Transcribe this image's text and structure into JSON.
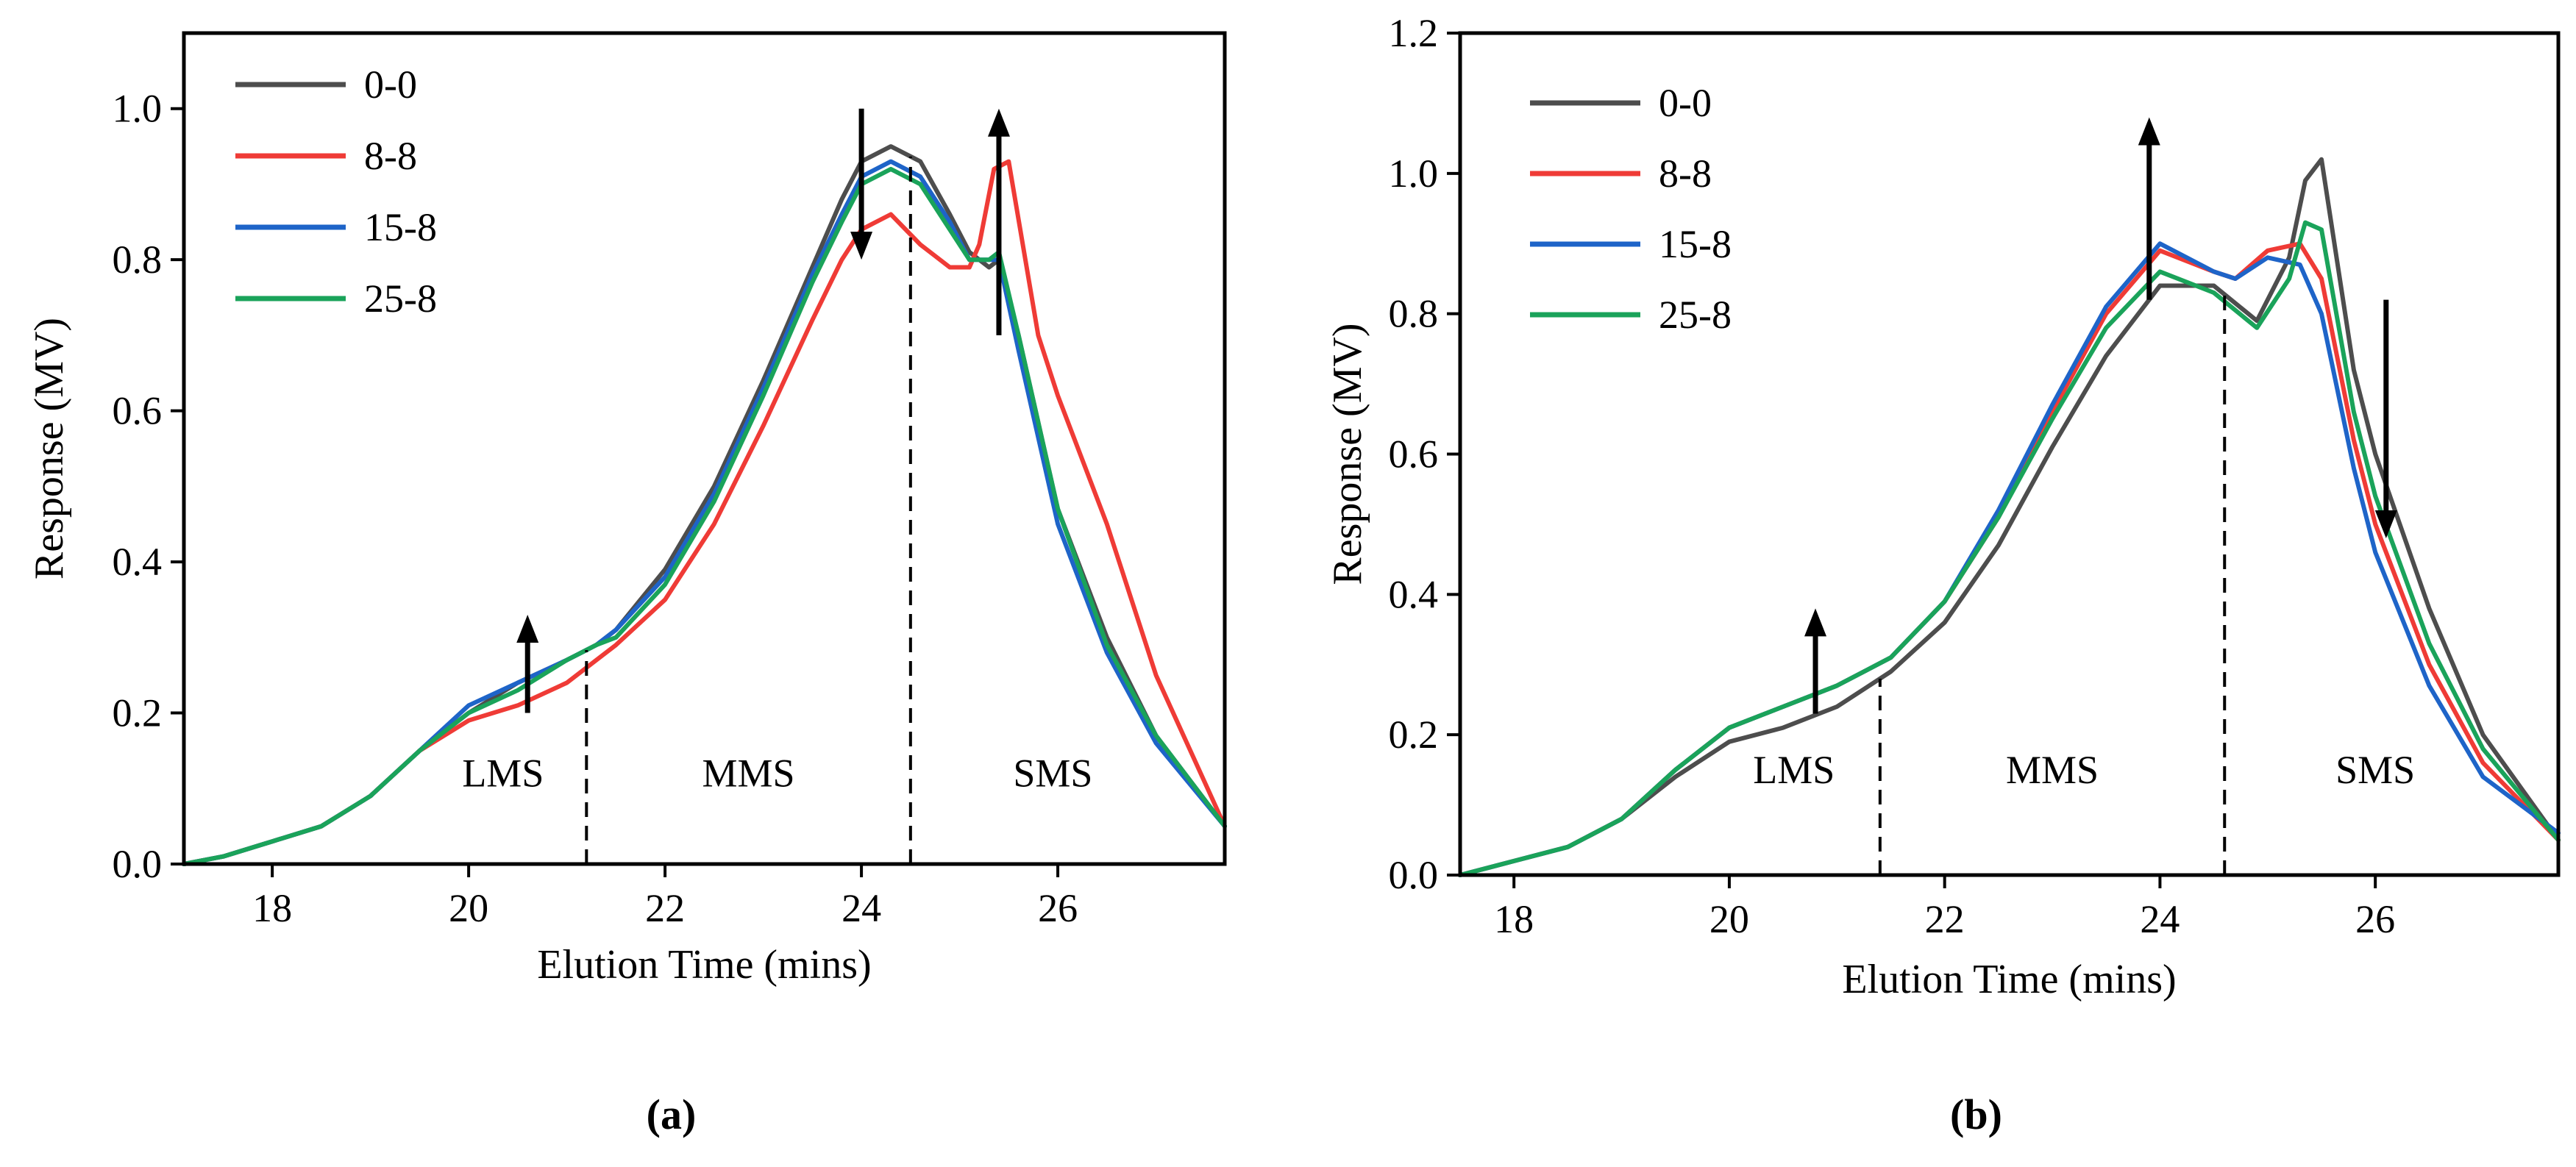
{
  "chart_data": [
    {
      "type": "line",
      "panel_label": "(a)",
      "xlabel": "Elution Time (mins)",
      "ylabel": "Response (MV)",
      "xlim": [
        17.1,
        27.7
      ],
      "ylim": [
        0,
        1.1
      ],
      "x_ticks": [
        18,
        20,
        22,
        24,
        26
      ],
      "x_tick_labels": [
        "18",
        "20",
        "22",
        "24",
        "26"
      ],
      "y_ticks": [
        0,
        0.2,
        0.4,
        0.6,
        0.8,
        1.0
      ],
      "y_tick_labels": [
        "0.0",
        "0.2",
        "0.4",
        "0.6",
        "0.8",
        "1.0"
      ],
      "legend_placement": "top-left",
      "series": [
        {
          "name": "0-0",
          "color": "#4d4d4d",
          "x": [
            17.1,
            17.5,
            18.0,
            18.5,
            19.0,
            19.5,
            20.0,
            20.5,
            21.0,
            21.3,
            21.5,
            22.0,
            22.5,
            23.0,
            23.5,
            23.8,
            24.0,
            24.3,
            24.6,
            24.9,
            25.1,
            25.3,
            25.4,
            25.6,
            26.0,
            26.5,
            27.0,
            27.7
          ],
          "y": [
            0.0,
            0.01,
            0.03,
            0.05,
            0.09,
            0.15,
            0.2,
            0.24,
            0.27,
            0.29,
            0.31,
            0.39,
            0.5,
            0.64,
            0.79,
            0.88,
            0.93,
            0.95,
            0.93,
            0.86,
            0.81,
            0.79,
            0.8,
            0.7,
            0.47,
            0.3,
            0.17,
            0.05
          ]
        },
        {
          "name": "8-8",
          "color": "#ef3b36",
          "x": [
            17.1,
            17.5,
            18.0,
            18.5,
            19.0,
            19.5,
            20.0,
            20.5,
            21.0,
            21.3,
            21.5,
            22.0,
            22.5,
            23.0,
            23.5,
            23.8,
            24.0,
            24.3,
            24.6,
            24.9,
            25.1,
            25.2,
            25.35,
            25.5,
            25.8,
            26.0,
            26.5,
            27.0,
            27.7
          ],
          "y": [
            0.0,
            0.01,
            0.03,
            0.05,
            0.09,
            0.15,
            0.19,
            0.21,
            0.24,
            0.27,
            0.29,
            0.35,
            0.45,
            0.58,
            0.72,
            0.8,
            0.84,
            0.86,
            0.82,
            0.79,
            0.79,
            0.82,
            0.92,
            0.93,
            0.7,
            0.62,
            0.45,
            0.25,
            0.05
          ]
        },
        {
          "name": "15-8",
          "color": "#1e64c8",
          "x": [
            17.1,
            17.5,
            18.0,
            18.5,
            19.0,
            19.5,
            20.0,
            20.5,
            21.0,
            21.3,
            21.5,
            22.0,
            22.5,
            23.0,
            23.5,
            23.8,
            24.0,
            24.3,
            24.6,
            24.9,
            25.1,
            25.3,
            25.4,
            25.6,
            26.0,
            26.5,
            27.0,
            27.7
          ],
          "y": [
            0.0,
            0.01,
            0.03,
            0.05,
            0.09,
            0.15,
            0.21,
            0.24,
            0.27,
            0.29,
            0.31,
            0.38,
            0.49,
            0.63,
            0.78,
            0.86,
            0.91,
            0.93,
            0.91,
            0.85,
            0.8,
            0.8,
            0.8,
            0.68,
            0.45,
            0.28,
            0.16,
            0.05
          ]
        },
        {
          "name": "25-8",
          "color": "#1aa35a",
          "x": [
            17.1,
            17.5,
            18.0,
            18.5,
            19.0,
            19.5,
            20.0,
            20.5,
            21.0,
            21.3,
            21.5,
            22.0,
            22.5,
            23.0,
            23.5,
            23.8,
            24.0,
            24.3,
            24.6,
            24.9,
            25.1,
            25.3,
            25.4,
            25.6,
            26.0,
            26.5,
            27.0,
            27.7
          ],
          "y": [
            0.0,
            0.01,
            0.03,
            0.05,
            0.09,
            0.15,
            0.2,
            0.23,
            0.27,
            0.29,
            0.3,
            0.37,
            0.48,
            0.62,
            0.77,
            0.85,
            0.9,
            0.92,
            0.9,
            0.84,
            0.8,
            0.8,
            0.81,
            0.7,
            0.47,
            0.29,
            0.17,
            0.05
          ]
        }
      ],
      "boundaries": [
        21.2,
        24.5
      ],
      "region_labels": [
        {
          "text": "LMS",
          "x": 20.35,
          "y": 0.12
        },
        {
          "text": "MMS",
          "x": 22.85,
          "y": 0.12
        },
        {
          "text": "SMS",
          "x": 25.95,
          "y": 0.12
        }
      ],
      "arrows": [
        {
          "x": 20.6,
          "from": 0.2,
          "to": 0.33
        },
        {
          "x": 24.0,
          "from": 1.0,
          "to": 0.8
        },
        {
          "x": 25.4,
          "from": 0.7,
          "to": 1.0
        }
      ]
    },
    {
      "type": "line",
      "panel_label": "(b)",
      "xlabel": "Elution Time (mins)",
      "ylabel": "Response (MV)",
      "xlim": [
        17.5,
        27.7
      ],
      "ylim": [
        0,
        1.2
      ],
      "x_ticks": [
        18,
        20,
        22,
        24,
        26
      ],
      "x_tick_labels": [
        "18",
        "20",
        "22",
        "24",
        "26"
      ],
      "y_ticks": [
        0,
        0.2,
        0.4,
        0.6,
        0.8,
        1.0,
        1.2
      ],
      "y_tick_labels": [
        "0.0",
        "0.2",
        "0.4",
        "0.6",
        "0.8",
        "1.0",
        "1.2"
      ],
      "legend_placement": "top-left",
      "series": [
        {
          "name": "0-0",
          "color": "#4d4d4d",
          "x": [
            17.5,
            18.0,
            18.5,
            19.0,
            19.5,
            20.0,
            20.5,
            21.0,
            21.5,
            22.0,
            22.5,
            23.0,
            23.5,
            24.0,
            24.5,
            24.9,
            25.2,
            25.35,
            25.5,
            25.8,
            26.0,
            26.5,
            27.0,
            27.7
          ],
          "y": [
            0.0,
            0.02,
            0.04,
            0.08,
            0.14,
            0.19,
            0.21,
            0.24,
            0.29,
            0.36,
            0.47,
            0.61,
            0.74,
            0.84,
            0.84,
            0.79,
            0.88,
            0.99,
            1.02,
            0.72,
            0.6,
            0.38,
            0.2,
            0.05
          ]
        },
        {
          "name": "8-8",
          "color": "#ef3b36",
          "x": [
            17.5,
            18.0,
            18.5,
            19.0,
            19.5,
            20.0,
            20.5,
            21.0,
            21.5,
            22.0,
            22.5,
            23.0,
            23.5,
            24.0,
            24.5,
            24.7,
            25.0,
            25.3,
            25.5,
            25.8,
            26.0,
            26.5,
            27.0,
            27.7
          ],
          "y": [
            0.0,
            0.02,
            0.04,
            0.08,
            0.15,
            0.21,
            0.24,
            0.27,
            0.31,
            0.39,
            0.51,
            0.66,
            0.8,
            0.89,
            0.86,
            0.85,
            0.89,
            0.9,
            0.85,
            0.62,
            0.5,
            0.3,
            0.16,
            0.05
          ]
        },
        {
          "name": "15-8",
          "color": "#1e64c8",
          "x": [
            17.5,
            18.0,
            18.5,
            19.0,
            19.5,
            20.0,
            20.5,
            21.0,
            21.5,
            22.0,
            22.5,
            23.0,
            23.5,
            24.0,
            24.5,
            24.7,
            25.0,
            25.3,
            25.5,
            25.8,
            26.0,
            26.5,
            27.0,
            27.7
          ],
          "y": [
            0.0,
            0.02,
            0.04,
            0.08,
            0.15,
            0.21,
            0.24,
            0.27,
            0.31,
            0.39,
            0.52,
            0.67,
            0.81,
            0.9,
            0.86,
            0.85,
            0.88,
            0.87,
            0.8,
            0.58,
            0.46,
            0.27,
            0.14,
            0.06
          ]
        },
        {
          "name": "25-8",
          "color": "#1aa35a",
          "x": [
            17.5,
            18.0,
            18.5,
            19.0,
            19.5,
            20.0,
            20.5,
            21.0,
            21.5,
            22.0,
            22.5,
            23.0,
            23.5,
            24.0,
            24.5,
            24.9,
            25.2,
            25.35,
            25.5,
            25.8,
            26.0,
            26.5,
            27.0,
            27.7
          ],
          "y": [
            0.0,
            0.02,
            0.04,
            0.08,
            0.15,
            0.21,
            0.24,
            0.27,
            0.31,
            0.39,
            0.51,
            0.65,
            0.78,
            0.86,
            0.83,
            0.78,
            0.85,
            0.93,
            0.92,
            0.66,
            0.54,
            0.33,
            0.18,
            0.05
          ]
        }
      ],
      "boundaries": [
        21.4,
        24.6
      ],
      "region_labels": [
        {
          "text": "LMS",
          "x": 20.6,
          "y": 0.15
        },
        {
          "text": "MMS",
          "x": 23.0,
          "y": 0.15
        },
        {
          "text": "SMS",
          "x": 26.0,
          "y": 0.15
        }
      ],
      "arrows": [
        {
          "x": 20.8,
          "from": 0.23,
          "to": 0.38
        },
        {
          "x": 23.9,
          "from": 0.82,
          "to": 1.08
        },
        {
          "x": 26.1,
          "from": 0.82,
          "to": 0.48
        }
      ]
    }
  ]
}
